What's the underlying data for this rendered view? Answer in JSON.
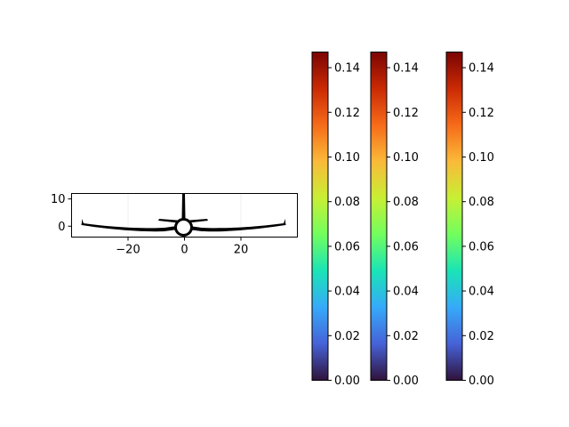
{
  "chart_data": [
    {
      "type": "line",
      "description_free": true,
      "xlim": [
        -40,
        40
      ],
      "ylim": [
        -4,
        12
      ],
      "x_ticks": [
        "−20",
        "0",
        "20"
      ],
      "y_ticks": [
        "0",
        "10"
      ],
      "x_tick_values": [
        -20,
        0,
        20
      ],
      "y_tick_values": [
        0,
        10
      ],
      "grid": true,
      "series": [
        {
          "outline_x": [
            -37.5,
            -30,
            -20,
            -10,
            -4,
            0,
            4,
            10,
            20,
            30,
            37.5
          ],
          "outline_y": [
            1.5,
            -0.5,
            -1.3,
            -1.0,
            -0.6,
            -0.3,
            -0.6,
            -1.0,
            -1.3,
            -0.5,
            1.5
          ]
        }
      ]
    },
    {
      "type": "heatmap",
      "colormap": "turbo",
      "range": [
        0.0,
        0.147
      ],
      "ticks": [
        "0.00",
        "0.02",
        "0.04",
        "0.06",
        "0.08",
        "0.10",
        "0.12",
        "0.14"
      ],
      "tick_values": [
        0.0,
        0.02,
        0.04,
        0.06,
        0.08,
        0.1,
        0.12,
        0.14
      ]
    },
    {
      "type": "heatmap",
      "colormap": "turbo",
      "range": [
        0.0,
        0.147
      ],
      "ticks": [
        "0.00",
        "0.02",
        "0.04",
        "0.06",
        "0.08",
        "0.10",
        "0.12",
        "0.14"
      ],
      "tick_values": [
        0.0,
        0.02,
        0.04,
        0.06,
        0.08,
        0.1,
        0.12,
        0.14
      ]
    },
    {
      "type": "heatmap",
      "colormap": "turbo",
      "range": [
        0.0,
        0.147
      ],
      "ticks": [
        "0.00",
        "0.02",
        "0.04",
        "0.06",
        "0.08",
        "0.10",
        "0.12",
        "0.14"
      ],
      "tick_values": [
        0.0,
        0.02,
        0.04,
        0.06,
        0.08,
        0.1,
        0.12,
        0.14
      ]
    }
  ],
  "colors": {
    "turbo_stops": [
      "#30123b",
      "#4662d7",
      "#36aaf9",
      "#1ae4b6",
      "#72fe5e",
      "#c8ef34",
      "#faba39",
      "#f66b19",
      "#ca2a04",
      "#7a0403"
    ]
  }
}
